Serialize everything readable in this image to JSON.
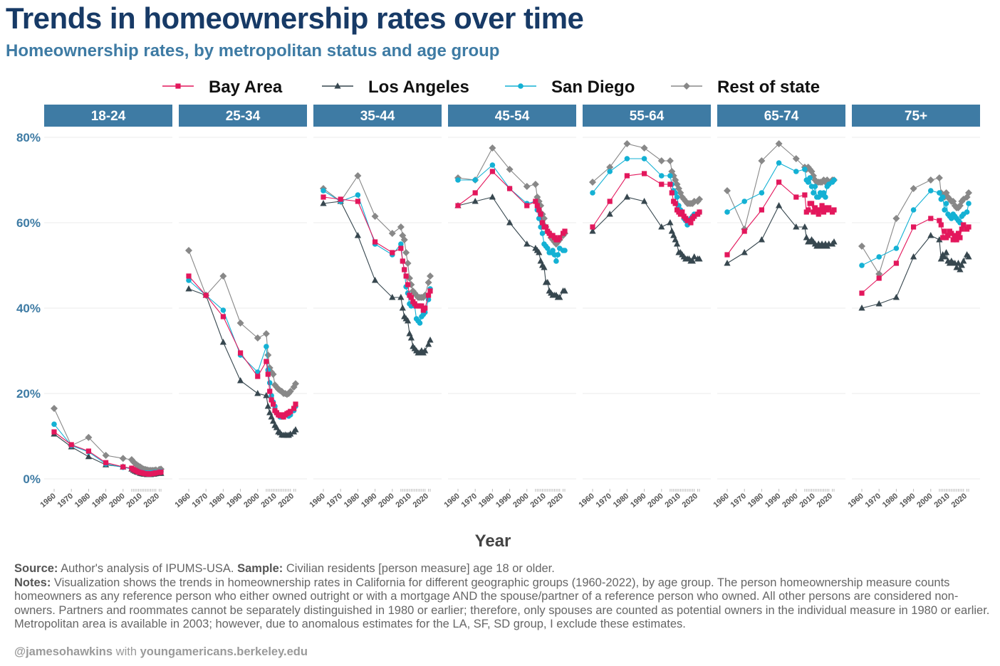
{
  "title": "Trends in homeownership rates over time",
  "subtitle": "Homeownership rates, by metropolitan status and age group",
  "source_label": "Source:",
  "source_text": " Author's analysis of IPUMS-USA. ",
  "sample_label": "Sample:",
  "sample_text": " Civilian residents [person measure] age 18 or older.",
  "notes_label": "Notes:",
  "notes_text": " Visualization shows the trends in homeownership rates in California for different geographic groups (1960-2022), by age group. The person homeownership measure counts homeowners as any reference person who either owned outright or with a mortgage AND the spouse/partner of a reference person who owned. All other persons are considered non-owners. Partners and roommates cannot be separately distinguished in 1980 or earlier; therefore, only spouses are counted as potential owners in the individual measure in 1980 or earlier. Metropolitan area is available in 2003; however, due to anomalous estimates for the LA, SF, SD group, I exclude these estimates.",
  "credit_handle": "@jamesohawkins",
  "credit_with": " with ",
  "credit_site": "youngamericans.berkeley.edu",
  "colors": {
    "Bay Area": "#e3175c",
    "Los Angeles": "#37474f",
    "San Diego": "#14b1d4",
    "Rest of state": "#888888",
    "facet_strip": "#3e7ba4",
    "grid": "#ebebeb"
  },
  "chart_data": {
    "type": "line",
    "xlabel": "Year",
    "ylabel": "",
    "ylim": [
      0,
      80
    ],
    "yticks": [
      "0%",
      "20%",
      "40%",
      "60%",
      "80%"
    ],
    "xticks": [
      "1960",
      "1970",
      "1980",
      "1990",
      "2000",
      "2010",
      "2020"
    ],
    "legend_position": "top",
    "grid": true,
    "markers": {
      "Bay Area": "square",
      "Los Angeles": "triangle",
      "San Diego": "circle",
      "Rest of state": "diamond"
    },
    "x": [
      1960,
      1970,
      1980,
      1990,
      2000,
      2005,
      2006,
      2007,
      2008,
      2009,
      2010,
      2011,
      2012,
      2013,
      2014,
      2015,
      2016,
      2017,
      2018,
      2019,
      2021,
      2022
    ],
    "series_names": [
      "Bay Area",
      "Los Angeles",
      "San Diego",
      "Rest of state"
    ],
    "facets": [
      {
        "label": "18-24",
        "series": [
          {
            "name": "Bay Area",
            "values": [
              11,
              8,
              6.5,
              3.8,
              2.8,
              2.5,
              2.2,
              2,
              1.8,
              1.6,
              1.5,
              1.4,
              1.3,
              1.2,
              1.2,
              1.1,
              1.2,
              1.2,
              1.3,
              1.4,
              1.5,
              1.6
            ]
          },
          {
            "name": "Los Angeles",
            "values": [
              10.5,
              7.5,
              5.2,
              3.3,
              2.8,
              2.3,
              2,
              1.8,
              1.6,
              1.5,
              1.3,
              1.2,
              1.1,
              1.1,
              1,
              1,
              1,
              1.1,
              1.1,
              1.2,
              1.3,
              1.3
            ]
          },
          {
            "name": "San Diego",
            "values": [
              12.8,
              7.8,
              6.3,
              3.5,
              2.7,
              2.4,
              2.2,
              2,
              1.9,
              1.7,
              1.6,
              1.5,
              1.4,
              1.4,
              1.3,
              1.3,
              1.4,
              1.4,
              1.5,
              1.5,
              1.6,
              1.7
            ]
          },
          {
            "name": "Rest of state",
            "values": [
              16.5,
              7.8,
              9.7,
              5.5,
              4.8,
              4.5,
              4,
              3.6,
              3.3,
              3,
              2.8,
              2.5,
              2.3,
              2.2,
              2.1,
              2,
              2,
              2,
              2,
              2.1,
              2.2,
              2.3
            ]
          }
        ]
      },
      {
        "label": "25-34",
        "series": [
          {
            "name": "Bay Area",
            "values": [
              47.5,
              43,
              38,
              29.5,
              24,
              27.5,
              24.5,
              20.5,
              18.5,
              17.5,
              16,
              15.5,
              15,
              14.8,
              15,
              14.5,
              15,
              15.3,
              15.5,
              15.8,
              16.5,
              17.5
            ]
          },
          {
            "name": "Los Angeles",
            "values": [
              44.5,
              43,
              32,
              23,
              20,
              19.5,
              17,
              15.5,
              14.5,
              13.5,
              12.5,
              12,
              11,
              10.8,
              10.3,
              10.2,
              10.3,
              10.2,
              10.2,
              10.5,
              11,
              11.5
            ]
          },
          {
            "name": "San Diego",
            "values": [
              46.5,
              43,
              39.5,
              29,
              25,
              31,
              25.5,
              22.5,
              19.5,
              18,
              17,
              15.5,
              15,
              14.5,
              14.5,
              14.5,
              15,
              15,
              14.7,
              15,
              16,
              17
            ]
          },
          {
            "name": "Rest of state",
            "values": [
              53.5,
              43,
              47.5,
              36.5,
              33,
              34,
              29,
              26,
              25,
              24.5,
              22,
              21.5,
              21,
              20.7,
              20.5,
              20,
              20,
              19.8,
              20,
              20.5,
              21.5,
              22.3
            ]
          }
        ]
      },
      {
        "label": "35-44",
        "series": [
          {
            "name": "Bay Area",
            "values": [
              66,
              65.5,
              65,
              55.5,
              53,
              54,
              51,
              49,
              47.5,
              45.5,
              43,
              42.5,
              41.5,
              41,
              40.5,
              40.5,
              40.5,
              40.5,
              39.5,
              40,
              43,
              44
            ]
          },
          {
            "name": "Los Angeles",
            "values": [
              64.5,
              65,
              57,
              46.5,
              42.5,
              42.5,
              40,
              38,
              37.5,
              37,
              34,
              33,
              31,
              30.5,
              30,
              29.5,
              29.5,
              30,
              29.5,
              30,
              31.5,
              32.5
            ]
          },
          {
            "name": "San Diego",
            "values": [
              67.5,
              65,
              66.5,
              55,
              52.5,
              55,
              51,
              49,
              45,
              43.5,
              41,
              40.5,
              41,
              40.5,
              37.5,
              37,
              36.5,
              38,
              38.5,
              39,
              42,
              44.5
            ]
          },
          {
            "name": "Rest of state",
            "values": [
              68,
              65,
              71,
              61.5,
              57.5,
              59,
              57,
              56,
              53,
              50.5,
              47,
              45.5,
              44,
              43.5,
              43,
              42.5,
              42.5,
              42.5,
              42.5,
              43,
              46,
              47.5
            ]
          }
        ]
      },
      {
        "label": "45-54",
        "series": [
          {
            "name": "Bay Area",
            "values": [
              64,
              67,
              72,
              68,
              64,
              65,
              64,
              63,
              62,
              60,
              59,
              59,
              58,
              57.5,
              57,
              57,
              56.5,
              56,
              56,
              56.5,
              57.5,
              58
            ]
          },
          {
            "name": "Los Angeles",
            "values": [
              64,
              65,
              66,
              60,
              55,
              54,
              53.5,
              53,
              51,
              50,
              49.5,
              46,
              46,
              44,
              43.5,
              43,
              43,
              43,
              42.5,
              42.5,
              44,
              44
            ]
          },
          {
            "name": "San Diego",
            "values": [
              70,
              70,
              73.5,
              68,
              64.5,
              65,
              63,
              61,
              59,
              57.5,
              55,
              54.5,
              54,
              53,
              53,
              53.5,
              52.5,
              51,
              52.5,
              54,
              53.5,
              53.5
            ]
          },
          {
            "name": "Rest of state",
            "values": [
              70.5,
              70,
              77.5,
              72.5,
              68.5,
              69,
              66,
              65,
              64,
              62,
              61,
              59,
              58,
              57.5,
              56.5,
              56,
              55.5,
              55,
              55.5,
              56,
              57,
              57.5
            ]
          }
        ]
      },
      {
        "label": "55-64",
        "series": [
          {
            "name": "Bay Area",
            "values": [
              59,
              65,
              71,
              71.5,
              69,
              69,
              67,
              65,
              64.5,
              63,
              62.5,
              62,
              62.5,
              61.5,
              61,
              60.5,
              60.5,
              60,
              61,
              61.5,
              62,
              62.5
            ]
          },
          {
            "name": "Los Angeles",
            "values": [
              58,
              62,
              66,
              65,
              59,
              60,
              58,
              57,
              56,
              55,
              53,
              53,
              52.5,
              52,
              51.5,
              51.5,
              51.5,
              51,
              51,
              52,
              51.5,
              51.5
            ]
          },
          {
            "name": "San Diego",
            "values": [
              67,
              72,
              75,
              75,
              71,
              71,
              69,
              67.5,
              67,
              66,
              64,
              63,
              62,
              61,
              60.5,
              59.5,
              60.5,
              61,
              61.5,
              62,
              62,
              62.5
            ]
          },
          {
            "name": "Rest of state",
            "values": [
              69.5,
              73,
              78.5,
              77.5,
              74.5,
              74.5,
              72,
              71,
              70,
              69,
              68,
              67,
              66,
              65.5,
              65,
              64.5,
              64.5,
              64.5,
              64.5,
              65,
              65,
              65.5
            ]
          }
        ]
      },
      {
        "label": "65-74",
        "series": [
          {
            "name": "Bay Area",
            "values": [
              52.5,
              58,
              63,
              69.5,
              66,
              66.5,
              62.5,
              63,
              64.5,
              64.5,
              62.5,
              63.5,
              63,
              62,
              63,
              64,
              62.5,
              63.5,
              63,
              63.5,
              62.5,
              63
            ]
          },
          {
            "name": "Los Angeles",
            "values": [
              50.5,
              53,
              56,
              64,
              59,
              59,
              56.5,
              55.5,
              55.5,
              56,
              55.5,
              55,
              54.5,
              55,
              54.5,
              55,
              54.5,
              55,
              54.5,
              55,
              55,
              55.5
            ]
          },
          {
            "name": "San Diego",
            "values": [
              62.5,
              65,
              67,
              74,
              72,
              72.5,
              70,
              69.5,
              70.5,
              68.5,
              67,
              68.5,
              66,
              66,
              67,
              66.5,
              67,
              66,
              68.5,
              69,
              69.5,
              70
            ]
          },
          {
            "name": "Rest of state",
            "values": [
              67.5,
              58.5,
              74.5,
              78.5,
              75,
              73,
              72.5,
              73,
              72.5,
              72,
              71,
              70,
              69.5,
              69.5,
              69.5,
              69.5,
              70,
              69.5,
              70,
              69.5,
              70,
              70
            ]
          }
        ]
      },
      {
        "label": "75+",
        "series": [
          {
            "name": "Bay Area",
            "values": [
              43.5,
              47,
              50.5,
              59,
              61,
              60.5,
              59.5,
              56.5,
              58,
              56.5,
              57,
              58,
              57.5,
              56,
              57,
              56,
              57.5,
              56.5,
              58.5,
              59.5,
              58.5,
              59
            ]
          },
          {
            "name": "Los Angeles",
            "values": [
              40,
              41,
              42.5,
              52,
              57,
              56,
              51.5,
              52.5,
              52,
              53,
              51,
              50.5,
              51,
              50.5,
              50.5,
              49.5,
              50.5,
              49,
              50,
              51,
              52.5,
              52
            ]
          },
          {
            "name": "San Diego",
            "values": [
              50,
              52,
              54,
              63,
              67.5,
              67,
              65.5,
              66,
              63,
              64.5,
              62,
              61.5,
              61,
              62,
              61.5,
              61,
              60.5,
              60,
              61.5,
              62,
              62.5,
              64.5
            ]
          },
          {
            "name": "Rest of state",
            "values": [
              54.5,
              48,
              61,
              68,
              70,
              70.5,
              67,
              66.5,
              66,
              67,
              66,
              65.5,
              65,
              65,
              64,
              63.5,
              63.5,
              64,
              65,
              65.5,
              66,
              67
            ]
          }
        ]
      }
    ]
  }
}
